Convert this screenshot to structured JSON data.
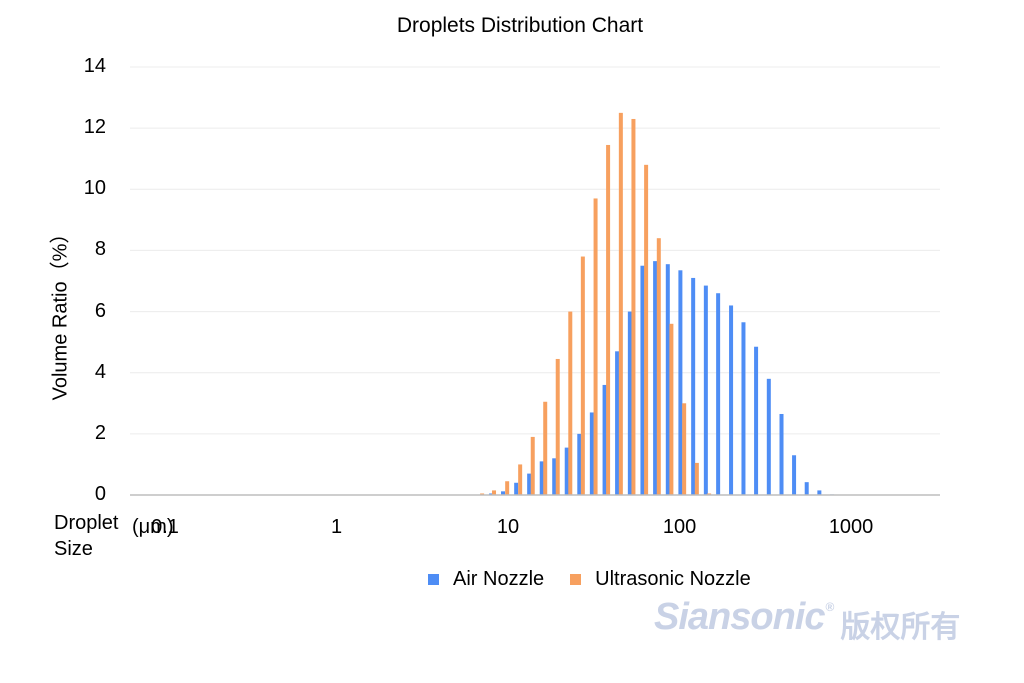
{
  "chart_data": {
    "type": "bar",
    "title": "Droplets Distribution Chart",
    "ylabel": "Volume Ratio（%）",
    "xlabel": "Droplet Size",
    "xunit": "(μm)",
    "xscale": "log",
    "xlim": [
      0.0625,
      3300
    ],
    "ylim": [
      0,
      14
    ],
    "yticks": [
      "0",
      "2",
      "4",
      "6",
      "8",
      "10",
      "12",
      "14"
    ],
    "xticks": [
      {
        "label": "0.1",
        "value": 0.1
      },
      {
        "label": "1",
        "value": 1
      },
      {
        "label": "10",
        "value": 10
      },
      {
        "label": "100",
        "value": 100
      },
      {
        "label": "1000",
        "value": 1000
      }
    ],
    "grid": true,
    "legend_position": "bottom-center",
    "series": [
      {
        "name": "Air Nozzle",
        "color": "#4e8df5",
        "points": [
          {
            "x": 7.5,
            "y": 0.05
          },
          {
            "x": 8.8,
            "y": 0.12
          },
          {
            "x": 10.5,
            "y": 0.4
          },
          {
            "x": 12.5,
            "y": 0.7
          },
          {
            "x": 14.8,
            "y": 1.1
          },
          {
            "x": 17.5,
            "y": 1.2
          },
          {
            "x": 20.7,
            "y": 1.55
          },
          {
            "x": 24.5,
            "y": 2.0
          },
          {
            "x": 29,
            "y": 2.7
          },
          {
            "x": 34.4,
            "y": 3.6
          },
          {
            "x": 40.7,
            "y": 4.7
          },
          {
            "x": 48.3,
            "y": 6.0
          },
          {
            "x": 57.2,
            "y": 7.5
          },
          {
            "x": 67.8,
            "y": 7.65
          },
          {
            "x": 80.4,
            "y": 7.55
          },
          {
            "x": 95.2,
            "y": 7.35
          },
          {
            "x": 113,
            "y": 7.1
          },
          {
            "x": 134,
            "y": 6.85
          },
          {
            "x": 158,
            "y": 6.6
          },
          {
            "x": 188,
            "y": 6.2
          },
          {
            "x": 222,
            "y": 5.65
          },
          {
            "x": 263,
            "y": 4.85
          },
          {
            "x": 312,
            "y": 3.8
          },
          {
            "x": 370,
            "y": 2.65
          },
          {
            "x": 438,
            "y": 1.3
          },
          {
            "x": 519,
            "y": 0.42
          },
          {
            "x": 615,
            "y": 0.15
          },
          {
            "x": 729,
            "y": 0.02
          }
        ]
      },
      {
        "name": "Ultrasonic Nozzle",
        "color": "#f7a05f",
        "points": [
          {
            "x": 7.5,
            "y": 0.05
          },
          {
            "x": 8.8,
            "y": 0.15
          },
          {
            "x": 10.5,
            "y": 0.45
          },
          {
            "x": 12.5,
            "y": 1.0
          },
          {
            "x": 14.8,
            "y": 1.9
          },
          {
            "x": 17.5,
            "y": 3.05
          },
          {
            "x": 20.7,
            "y": 4.45
          },
          {
            "x": 24.5,
            "y": 6.0
          },
          {
            "x": 29,
            "y": 7.8
          },
          {
            "x": 34.4,
            "y": 9.7
          },
          {
            "x": 40.7,
            "y": 11.45
          },
          {
            "x": 48.3,
            "y": 12.5
          },
          {
            "x": 57.2,
            "y": 12.3
          },
          {
            "x": 67.8,
            "y": 10.8
          },
          {
            "x": 80.4,
            "y": 8.4
          },
          {
            "x": 95.2,
            "y": 5.6
          },
          {
            "x": 113,
            "y": 3.0
          },
          {
            "x": 134,
            "y": 1.05
          },
          {
            "x": 158,
            "y": 0.05
          }
        ]
      }
    ]
  },
  "watermark": {
    "brand": "Siansonic",
    "registered": "®",
    "suffix": "版权所有"
  }
}
